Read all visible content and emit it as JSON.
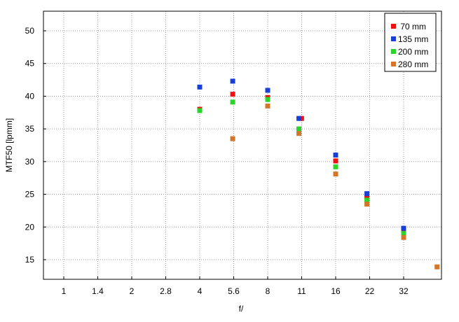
{
  "chart_data": {
    "type": "scatter",
    "title": "",
    "xlabel": "f/",
    "ylabel": "MTF50 [lpmm]",
    "x_categories": [
      "1",
      "1.4",
      "2",
      "2.8",
      "4",
      "5.6",
      "8",
      "11",
      "16",
      "22",
      "32"
    ],
    "ylim": [
      12,
      53
    ],
    "yticks": [
      15,
      20,
      25,
      30,
      35,
      40,
      45,
      50
    ],
    "grid": true,
    "legend_placement": "top-right",
    "series": [
      {
        "name": " 70 mm",
        "color": "#ee1111",
        "points": [
          {
            "x": 4,
            "y": 38.0
          },
          {
            "x": 5.6,
            "y": 40.3
          },
          {
            "x": 8,
            "y": 39.8
          },
          {
            "x": 11.3,
            "y": 36.6
          },
          {
            "x": 16,
            "y": 30.1
          },
          {
            "x": 22,
            "y": 24.6
          },
          {
            "x": 32,
            "y": 19.2
          }
        ]
      },
      {
        "name": "135 mm",
        "color": "#1a3fd6",
        "points": [
          {
            "x": 4,
            "y": 41.4
          },
          {
            "x": 5.6,
            "y": 42.3
          },
          {
            "x": 8,
            "y": 40.9
          },
          {
            "x": 11,
            "y": 36.6
          },
          {
            "x": 16,
            "y": 31.0
          },
          {
            "x": 22,
            "y": 25.1
          },
          {
            "x": 32,
            "y": 19.8
          }
        ]
      },
      {
        "name": "200 mm",
        "color": "#2bd42b",
        "points": [
          {
            "x": 4,
            "y": 37.8
          },
          {
            "x": 5.6,
            "y": 39.1
          },
          {
            "x": 8,
            "y": 39.5
          },
          {
            "x": 11,
            "y": 35.0
          },
          {
            "x": 16,
            "y": 29.2
          },
          {
            "x": 22,
            "y": 24.1
          },
          {
            "x": 32,
            "y": 19.0
          }
        ]
      },
      {
        "name": "280 mm",
        "color": "#d2772a",
        "points": [
          {
            "x": 5.6,
            "y": 33.5
          },
          {
            "x": 8,
            "y": 38.5
          },
          {
            "x": 11,
            "y": 34.3
          },
          {
            "x": 16,
            "y": 28.1
          },
          {
            "x": 22,
            "y": 23.5
          },
          {
            "x": 32,
            "y": 18.4
          },
          {
            "x": 45,
            "y": 13.9
          }
        ]
      }
    ]
  }
}
